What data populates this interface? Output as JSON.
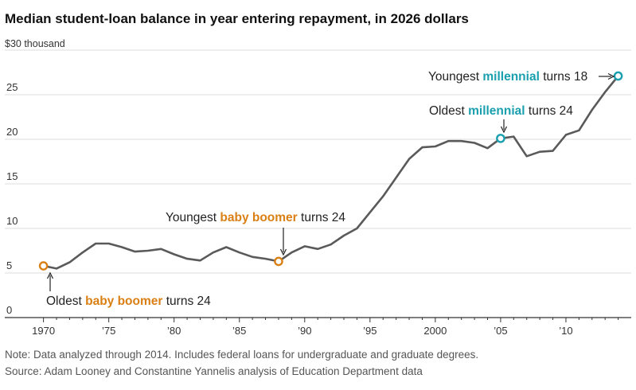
{
  "title": "Median student-loan balance in year entering repayment, in 2026 dollars",
  "unit_label": "$30 thousand",
  "colors": {
    "line": "#5a5a5a",
    "boomer": "#d97f14",
    "millennial": "#1a9fae"
  },
  "chart_data": {
    "type": "line",
    "title": "Median student-loan balance in year entering repayment, in 2026 dollars",
    "xlabel": "",
    "ylabel": "",
    "xlim": [
      1968.5,
      2015
    ],
    "ylim": [
      0,
      30
    ],
    "grid": true,
    "y_ticks": [
      {
        "value": 0,
        "label": "0"
      },
      {
        "value": 5,
        "label": "5"
      },
      {
        "value": 10,
        "label": "10"
      },
      {
        "value": 15,
        "label": "15"
      },
      {
        "value": 20,
        "label": "20"
      },
      {
        "value": 25,
        "label": "25"
      }
    ],
    "x_ticks": [
      {
        "value": 1970,
        "label": "1970"
      },
      {
        "value": 1975,
        "label": "’75"
      },
      {
        "value": 1980,
        "label": "’80"
      },
      {
        "value": 1985,
        "label": "’85"
      },
      {
        "value": 1990,
        "label": "’90"
      },
      {
        "value": 1995,
        "label": "’95"
      },
      {
        "value": 2000,
        "label": "2000"
      },
      {
        "value": 2005,
        "label": "’05"
      },
      {
        "value": 2010,
        "label": "’10"
      }
    ],
    "x": [
      1970,
      1971,
      1972,
      1973,
      1974,
      1975,
      1976,
      1977,
      1978,
      1979,
      1980,
      1981,
      1982,
      1983,
      1984,
      1985,
      1986,
      1987,
      1988,
      1989,
      1990,
      1991,
      1992,
      1993,
      1994,
      1995,
      1996,
      1997,
      1998,
      1999,
      2000,
      2001,
      2002,
      2003,
      2004,
      2005,
      2006,
      2007,
      2008,
      2009,
      2010,
      2011,
      2012,
      2013,
      2014
    ],
    "y": [
      5.8,
      5.5,
      6.2,
      7.3,
      8.3,
      8.3,
      7.9,
      7.4,
      7.5,
      7.7,
      7.1,
      6.6,
      6.4,
      7.3,
      7.9,
      7.3,
      6.8,
      6.6,
      6.3,
      7.3,
      8.0,
      7.7,
      8.2,
      9.2,
      10.0,
      11.8,
      13.6,
      15.7,
      17.8,
      19.1,
      19.2,
      19.8,
      19.8,
      19.6,
      19.0,
      20.1,
      20.3,
      18.1,
      18.6,
      18.7,
      20.5,
      21.0,
      23.3,
      25.3,
      27.1
    ],
    "markers": [
      {
        "x": 1970,
        "y": 5.8,
        "group": "boomer"
      },
      {
        "x": 1988,
        "y": 6.3,
        "group": "boomer"
      },
      {
        "x": 2005,
        "y": 20.1,
        "group": "millennial"
      },
      {
        "x": 2014,
        "y": 27.1,
        "group": "millennial"
      }
    ],
    "annotations": [
      {
        "pre": "Oldest ",
        "highlight": "baby boomer",
        "post": " turns 24",
        "group": "boomer"
      },
      {
        "pre": "Youngest ",
        "highlight": "baby boomer",
        "post": " turns 24",
        "group": "boomer"
      },
      {
        "pre": "Oldest ",
        "highlight": "millennial",
        "post": " turns 24",
        "group": "millennial"
      },
      {
        "pre": "Youngest ",
        "highlight": "millennial",
        "post": " turns 18",
        "group": "millennial"
      }
    ]
  },
  "note": "Note: Data analyzed through 2014. Includes federal loans for undergraduate and graduate degrees.",
  "source": "Source: Adam Looney and Constantine Yannelis analysis of Education Department data"
}
